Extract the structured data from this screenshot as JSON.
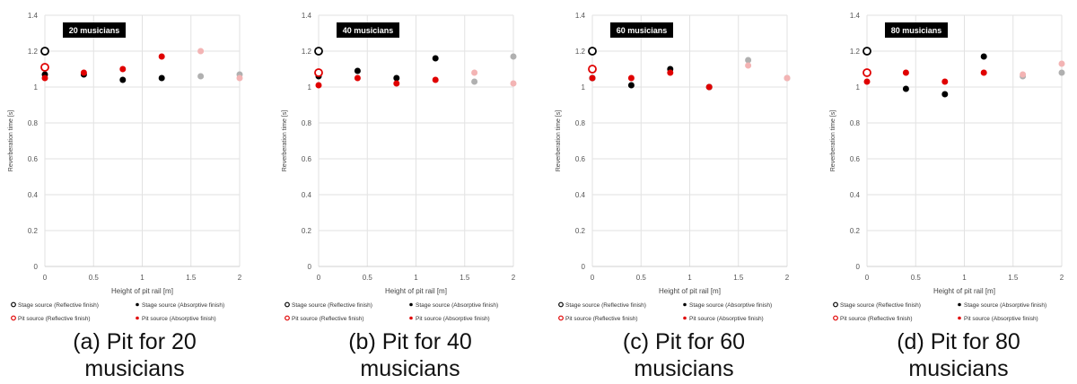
{
  "chart_data": [
    {
      "type": "scatter",
      "badge": "20 musicians",
      "caption": "(a) Pit for 20 musicians",
      "xlabel": "Height of pit rail [m]",
      "ylabel": "Reverberation time [s]",
      "xlim": [
        0,
        2
      ],
      "ylim": [
        0,
        1.4
      ],
      "xticks": [
        "0",
        "0.5",
        "1",
        "1.5",
        "2"
      ],
      "yticks": [
        "0",
        "0.2",
        "0.4",
        "0.6",
        "0.8",
        "1",
        "1.2",
        "1.4"
      ],
      "grid": true,
      "series": [
        {
          "name": "Stage source (Reflective finish)",
          "style": "open-black",
          "points": [
            [
              0,
              1.2
            ]
          ]
        },
        {
          "name": "Stage source (Absorptive finish)",
          "style": "filled-black",
          "points": [
            [
              0,
              1.07
            ],
            [
              0.4,
              1.07
            ],
            [
              0.8,
              1.04
            ],
            [
              1.2,
              1.05
            ],
            [
              1.6,
              1.06,
              "faded"
            ],
            [
              2,
              1.07,
              "faded"
            ]
          ]
        },
        {
          "name": "Pit source (Reflective finish)",
          "style": "open-red",
          "points": [
            [
              0,
              1.11
            ]
          ]
        },
        {
          "name": "Pit source (Absorptive finish)",
          "style": "filled-red",
          "points": [
            [
              0,
              1.05
            ],
            [
              0.4,
              1.08
            ],
            [
              0.8,
              1.1
            ],
            [
              1.2,
              1.17
            ],
            [
              1.6,
              1.2,
              "faded"
            ],
            [
              2,
              1.05,
              "faded"
            ]
          ]
        }
      ]
    },
    {
      "type": "scatter",
      "badge": "40 musicians",
      "caption": "(b) Pit for 40 musicians",
      "xlabel": "Height of pit rail [m]",
      "ylabel": "Reverberation time [s]",
      "xlim": [
        0,
        2
      ],
      "ylim": [
        0,
        1.4
      ],
      "xticks": [
        "0",
        "0.5",
        "1",
        "1.5",
        "2"
      ],
      "yticks": [
        "0",
        "0.2",
        "0.4",
        "0.6",
        "0.8",
        "1",
        "1.2",
        "1.4"
      ],
      "grid": true,
      "series": [
        {
          "name": "Stage source (Reflective finish)",
          "style": "open-black",
          "points": [
            [
              0,
              1.2
            ]
          ]
        },
        {
          "name": "Stage source (Absorptive finish)",
          "style": "filled-black",
          "points": [
            [
              0,
              1.06
            ],
            [
              0.4,
              1.09
            ],
            [
              0.8,
              1.05
            ],
            [
              1.2,
              1.16
            ],
            [
              1.6,
              1.03,
              "faded"
            ],
            [
              2,
              1.17,
              "faded"
            ]
          ]
        },
        {
          "name": "Pit source (Reflective finish)",
          "style": "open-red",
          "points": [
            [
              0,
              1.08
            ]
          ]
        },
        {
          "name": "Pit source (Absorptive finish)",
          "style": "filled-red",
          "points": [
            [
              0,
              1.01
            ],
            [
              0.4,
              1.05
            ],
            [
              0.8,
              1.02
            ],
            [
              1.2,
              1.04
            ],
            [
              1.6,
              1.08,
              "faded"
            ],
            [
              2,
              1.02,
              "faded"
            ]
          ]
        }
      ]
    },
    {
      "type": "scatter",
      "badge": "60 musicians",
      "caption": "(c) Pit for 60 musicians",
      "xlabel": "Height of pit rail [m]",
      "ylabel": "Reverberation time [s]",
      "xlim": [
        0,
        2
      ],
      "ylim": [
        0,
        1.4
      ],
      "xticks": [
        "0",
        "0.5",
        "1",
        "1.5",
        "2"
      ],
      "yticks": [
        "0",
        "0.2",
        "0.4",
        "0.6",
        "0.8",
        "1",
        "1.2",
        "1.4"
      ],
      "grid": true,
      "series": [
        {
          "name": "Stage source (Reflective finish)",
          "style": "open-black",
          "points": [
            [
              0,
              1.2
            ]
          ]
        },
        {
          "name": "Stage source (Absorptive finish)",
          "style": "filled-black",
          "points": [
            [
              0,
              1.05
            ],
            [
              0.4,
              1.01
            ],
            [
              0.8,
              1.1
            ],
            [
              1.2,
              1.0
            ],
            [
              1.6,
              1.15,
              "faded"
            ],
            [
              2,
              1.05,
              "faded"
            ]
          ]
        },
        {
          "name": "Pit source (Reflective finish)",
          "style": "open-red",
          "points": [
            [
              0,
              1.1
            ]
          ]
        },
        {
          "name": "Pit source (Absorptive finish)",
          "style": "filled-red",
          "points": [
            [
              0,
              1.05
            ],
            [
              0.4,
              1.05
            ],
            [
              0.8,
              1.08
            ],
            [
              1.2,
              1.0
            ],
            [
              1.6,
              1.12,
              "faded"
            ],
            [
              2,
              1.05,
              "faded"
            ]
          ]
        }
      ]
    },
    {
      "type": "scatter",
      "badge": "80 musicians",
      "caption": "(d) Pit for 80 musicians",
      "xlabel": "Height of pit rail [m]",
      "ylabel": "Reverberation time [s]",
      "xlim": [
        0,
        2
      ],
      "ylim": [
        0,
        1.4
      ],
      "xticks": [
        "0",
        "0.5",
        "1",
        "1.5",
        "2"
      ],
      "yticks": [
        "0",
        "0.2",
        "0.4",
        "0.6",
        "0.8",
        "1",
        "1.2",
        "1.4"
      ],
      "grid": true,
      "series": [
        {
          "name": "Stage source (Reflective finish)",
          "style": "open-black",
          "points": [
            [
              0,
              1.2
            ]
          ]
        },
        {
          "name": "Stage source (Absorptive finish)",
          "style": "filled-black",
          "points": [
            [
              0.4,
              0.99
            ],
            [
              0.8,
              0.96
            ],
            [
              1.2,
              1.17
            ],
            [
              1.6,
              1.06,
              "faded"
            ],
            [
              2,
              1.08,
              "faded"
            ]
          ]
        },
        {
          "name": "Pit source (Reflective finish)",
          "style": "open-red",
          "points": [
            [
              0,
              1.08
            ]
          ]
        },
        {
          "name": "Pit source (Absorptive finish)",
          "style": "filled-red",
          "points": [
            [
              0,
              1.03
            ],
            [
              0.4,
              1.08
            ],
            [
              0.8,
              1.03
            ],
            [
              1.2,
              1.08
            ],
            [
              1.6,
              1.07,
              "faded"
            ],
            [
              2,
              1.13,
              "faded"
            ]
          ]
        }
      ]
    }
  ],
  "colors": {
    "black": "#000000",
    "red": "#e00000",
    "faded_black": "#b0b0b0",
    "faded_red": "#f3b4b4",
    "grid": "#e2e2e2"
  }
}
